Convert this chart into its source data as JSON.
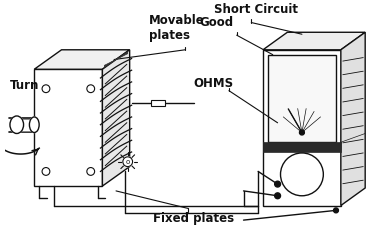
{
  "background_color": "#ffffff",
  "labels": {
    "short_circuit": "Short Circuit",
    "good": "Good",
    "movable_plates": "Movable\nplates",
    "ohms": "OHMS",
    "turn": "Turn",
    "fixed_plates": "Fixed plates"
  },
  "figsize": [
    3.8,
    2.5
  ],
  "dpi": 100,
  "black": "#111111"
}
